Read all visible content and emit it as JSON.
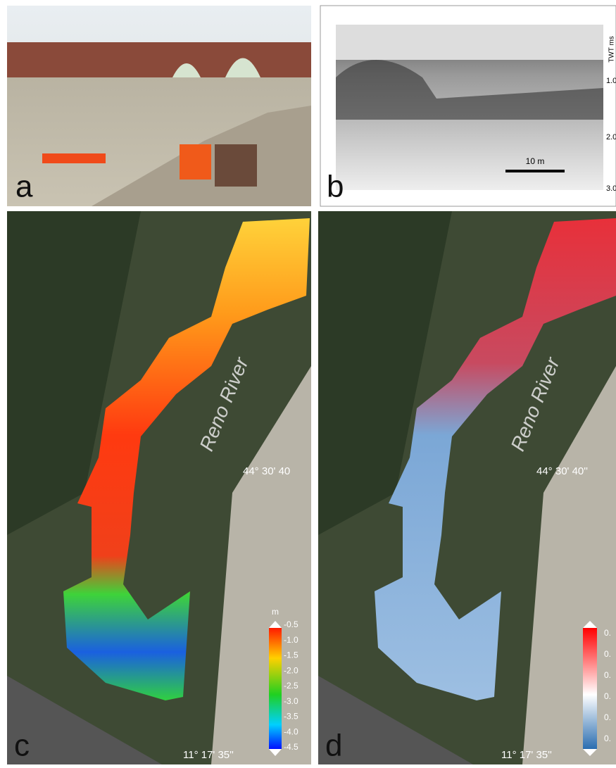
{
  "panels": [
    {
      "label": "a"
    },
    {
      "label": "b",
      "axis_label": "TWT ms",
      "ticks": [
        "1.0",
        "2.0",
        "3.0"
      ],
      "scale_bar": "10 m"
    },
    {
      "label": "c",
      "river_label": "Reno River",
      "latitude": "44° 30' 40",
      "longitude": "11° 17' 35''",
      "colorbar": {
        "unit": "m",
        "labels": [
          "-0.5",
          "-1.0",
          "-1.5",
          "-2.0",
          "-2.5",
          "-3.0",
          "-3.5",
          "-4.0",
          "-4.5"
        ]
      }
    },
    {
      "label": "d",
      "river_label": "Reno River",
      "latitude": "44° 30' 40''",
      "longitude": "11° 17' 35''",
      "colorbar": {
        "labels": [
          "0.",
          "0.",
          "0.",
          "0.",
          "0.",
          "0."
        ]
      }
    }
  ]
}
